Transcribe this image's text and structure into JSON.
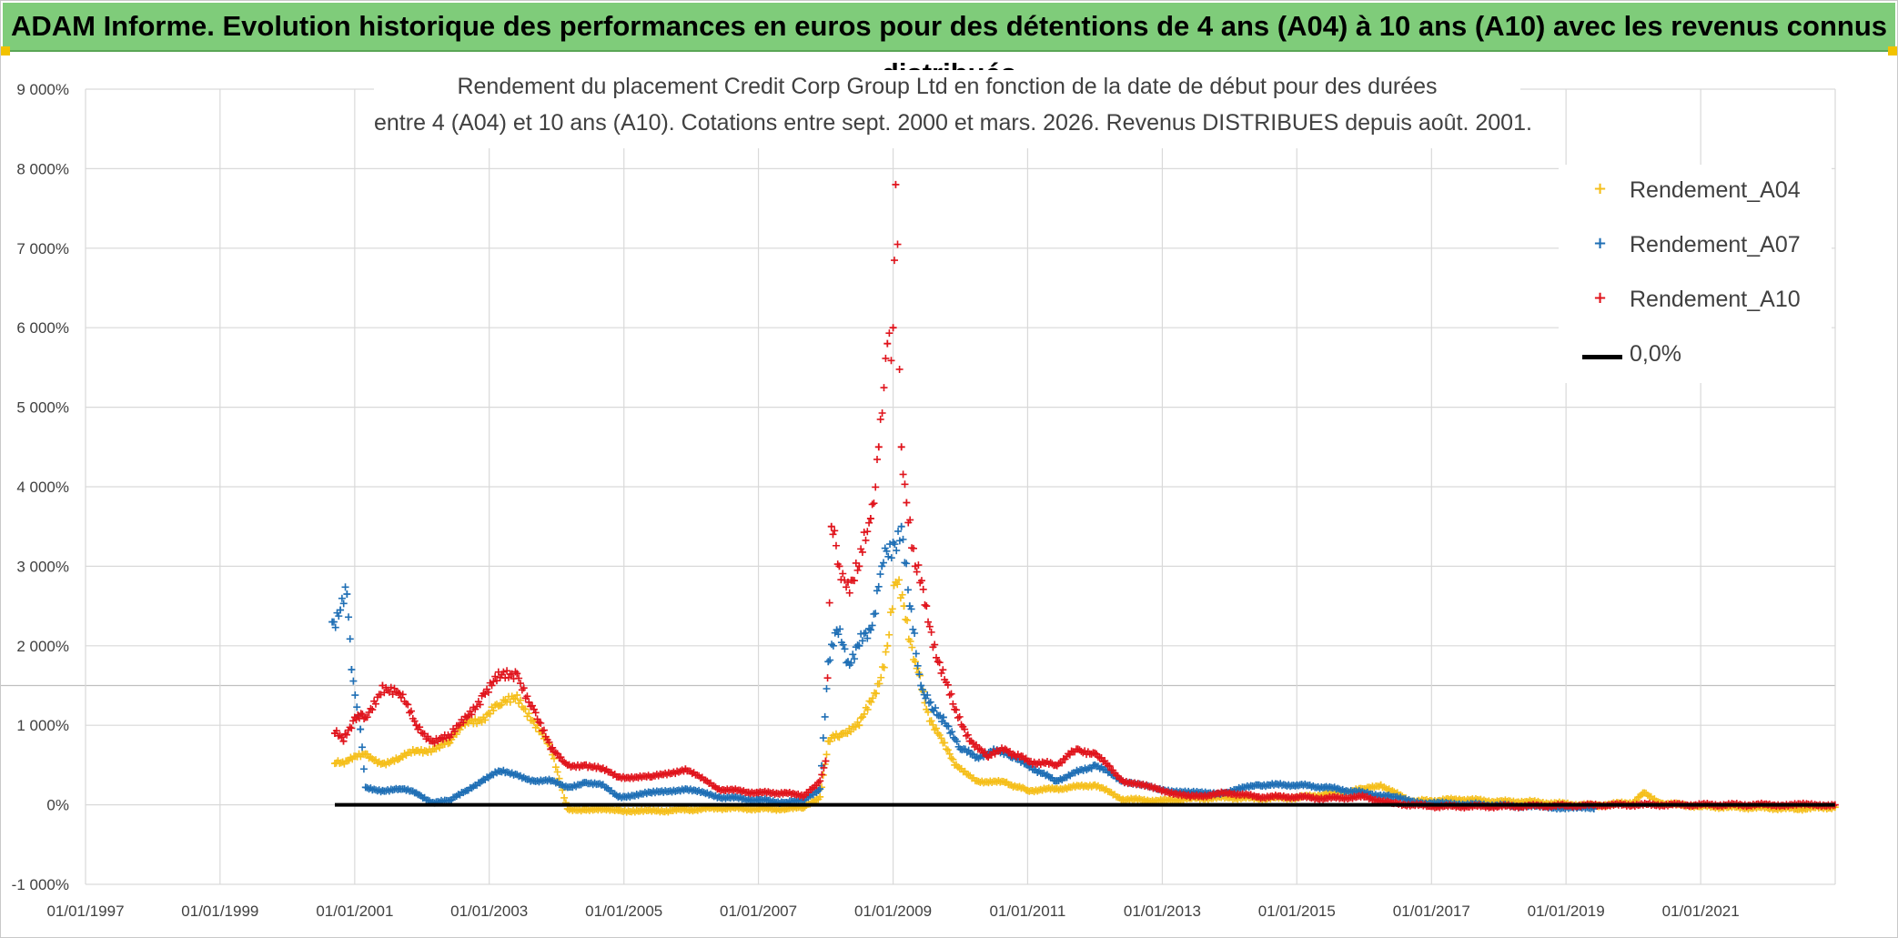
{
  "banner": {
    "title": "ADAM Informe. Evolution historique des performances en euros pour des détentions de 4 ans (A04) à 10 ans (A10) avec les revenus connus distribués"
  },
  "colors": {
    "banner_bg": "#7fcc7a",
    "A04": "#f5bf1b",
    "A07": "#1f6fb5",
    "A10": "#e0141c",
    "zero": "#000000"
  },
  "chart_data": {
    "type": "scatter",
    "title_line1": "Rendement du placement Credit Corp Group Ltd en fonction de la date de début pour des durées",
    "title_line2": "entre 4 (A04) et 10 ans (A10). Cotations entre sept. 2000 et mars. 2026. Revenus DISTRIBUES depuis août. 2001.",
    "x_ticks": [
      "01/01/1997",
      "01/01/1999",
      "01/01/2001",
      "01/01/2003",
      "01/01/2005",
      "01/01/2007",
      "01/01/2009",
      "01/01/2011",
      "01/01/2013",
      "01/01/2015",
      "01/01/2017",
      "01/01/2019",
      "01/01/2021"
    ],
    "y_ticks": [
      "9 000%",
      "8 000%",
      "7 000%",
      "6 000%",
      "5 000%",
      "4 000%",
      "3 000%",
      "2 000%",
      "1 000%",
      "0%",
      "-1 000%"
    ],
    "xlim": [
      "1997-01-01",
      "2023-01-01"
    ],
    "ylim": [
      -1000,
      9000
    ],
    "grid": true,
    "legend_position": "top-right",
    "series": [
      {
        "name": "Rendement_A04",
        "marker": "+",
        "points": [
          [
            "2000-09-15",
            520
          ],
          [
            "2000-12-01",
            560
          ],
          [
            "2001-03-01",
            640
          ],
          [
            "2001-06-01",
            520
          ],
          [
            "2001-09-01",
            580
          ],
          [
            "2001-12-01",
            680
          ],
          [
            "2002-03-01",
            700
          ],
          [
            "2002-06-01",
            780
          ],
          [
            "2002-09-01",
            1050
          ],
          [
            "2002-12-01",
            1100
          ],
          [
            "2003-03-01",
            1250
          ],
          [
            "2003-06-01",
            1380
          ],
          [
            "2003-09-01",
            1050
          ],
          [
            "2003-12-01",
            700
          ],
          [
            "2004-03-01",
            -50
          ],
          [
            "2004-06-01",
            -60
          ],
          [
            "2004-12-01",
            -70
          ],
          [
            "2005-06-01",
            -80
          ],
          [
            "2006-01-01",
            -60
          ],
          [
            "2006-06-01",
            -40
          ],
          [
            "2007-01-01",
            -50
          ],
          [
            "2007-06-01",
            -50
          ],
          [
            "2007-09-01",
            -40
          ],
          [
            "2007-12-01",
            100
          ],
          [
            "2008-01-15",
            800
          ],
          [
            "2008-04-01",
            900
          ],
          [
            "2008-07-01",
            1000
          ],
          [
            "2008-10-01",
            1400
          ],
          [
            "2008-12-01",
            2000
          ],
          [
            "2009-01-15",
            2800
          ],
          [
            "2009-03-01",
            2500
          ],
          [
            "2009-05-01",
            1800
          ],
          [
            "2009-07-01",
            1200
          ],
          [
            "2009-09-01",
            900
          ],
          [
            "2009-12-01",
            500
          ],
          [
            "2010-04-01",
            300
          ],
          [
            "2010-09-01",
            280
          ],
          [
            "2011-01-01",
            180
          ],
          [
            "2011-06-01",
            200
          ],
          [
            "2012-01-01",
            250
          ],
          [
            "2012-06-01",
            70
          ],
          [
            "2013-01-01",
            50
          ],
          [
            "2013-06-01",
            80
          ],
          [
            "2014-01-01",
            90
          ],
          [
            "2014-06-01",
            80
          ],
          [
            "2015-01-01",
            90
          ],
          [
            "2015-06-01",
            130
          ],
          [
            "2016-01-01",
            200
          ],
          [
            "2016-04-01",
            250
          ],
          [
            "2016-09-01",
            50
          ],
          [
            "2017-01-01",
            50
          ],
          [
            "2017-06-01",
            70
          ],
          [
            "2018-01-01",
            40
          ],
          [
            "2018-06-01",
            40
          ],
          [
            "2019-01-01",
            10
          ],
          [
            "2019-06-01",
            -10
          ],
          [
            "2020-01-01",
            30
          ],
          [
            "2020-03-01",
            150
          ],
          [
            "2020-06-01",
            20
          ],
          [
            "2021-01-01",
            -20
          ],
          [
            "2021-06-01",
            -30
          ],
          [
            "2022-01-01",
            -40
          ],
          [
            "2022-06-01",
            -50
          ],
          [
            "2022-12-31",
            -30
          ]
        ]
      },
      {
        "name": "Rendement_A07",
        "marker": "+",
        "points": [
          [
            "2000-09-01",
            2300
          ],
          [
            "2000-10-15",
            2450
          ],
          [
            "2000-11-20",
            2650
          ],
          [
            "2000-12-15",
            1700
          ],
          [
            "2001-02-01",
            950
          ],
          [
            "2001-03-01",
            220
          ],
          [
            "2001-06-01",
            180
          ],
          [
            "2001-09-01",
            200
          ],
          [
            "2001-12-01",
            150
          ],
          [
            "2002-03-01",
            30
          ],
          [
            "2002-06-01",
            50
          ],
          [
            "2002-09-01",
            180
          ],
          [
            "2002-12-01",
            320
          ],
          [
            "2003-03-01",
            420
          ],
          [
            "2003-06-01",
            380
          ],
          [
            "2003-09-01",
            300
          ],
          [
            "2003-12-01",
            300
          ],
          [
            "2004-03-01",
            220
          ],
          [
            "2004-06-01",
            280
          ],
          [
            "2004-09-01",
            250
          ],
          [
            "2004-12-01",
            100
          ],
          [
            "2005-06-01",
            150
          ],
          [
            "2005-12-01",
            200
          ],
          [
            "2006-06-01",
            100
          ],
          [
            "2007-01-01",
            60
          ],
          [
            "2007-06-01",
            30
          ],
          [
            "2007-09-01",
            50
          ],
          [
            "2007-12-01",
            200
          ],
          [
            "2008-01-15",
            1800
          ],
          [
            "2008-03-01",
            2200
          ],
          [
            "2008-05-01",
            1800
          ],
          [
            "2008-07-01",
            2000
          ],
          [
            "2008-09-01",
            2200
          ],
          [
            "2008-11-01",
            3000
          ],
          [
            "2009-01-01",
            3300
          ],
          [
            "2009-02-15",
            3500
          ],
          [
            "2009-04-01",
            2500
          ],
          [
            "2009-06-01",
            1500
          ],
          [
            "2009-08-01",
            1200
          ],
          [
            "2009-10-01",
            1100
          ],
          [
            "2010-01-01",
            700
          ],
          [
            "2010-04-01",
            600
          ],
          [
            "2010-07-01",
            700
          ],
          [
            "2010-10-01",
            600
          ],
          [
            "2011-01-01",
            500
          ],
          [
            "2011-06-01",
            300
          ],
          [
            "2012-01-01",
            500
          ],
          [
            "2012-06-01",
            300
          ],
          [
            "2012-12-01",
            200
          ],
          [
            "2013-06-01",
            150
          ],
          [
            "2013-12-01",
            150
          ],
          [
            "2014-06-01",
            250
          ],
          [
            "2015-01-01",
            250
          ],
          [
            "2015-06-01",
            220
          ],
          [
            "2016-01-01",
            150
          ],
          [
            "2016-06-01",
            100
          ],
          [
            "2016-12-01",
            20
          ],
          [
            "2017-06-01",
            10
          ],
          [
            "2018-06-01",
            -20
          ],
          [
            "2019-03-01",
            -40
          ],
          [
            "2019-06-01",
            -50
          ]
        ]
      },
      {
        "name": "Rendement_A10",
        "marker": "+",
        "points": [
          [
            "2000-09-15",
            900
          ],
          [
            "2000-11-01",
            800
          ],
          [
            "2001-01-01",
            1100
          ],
          [
            "2001-03-01",
            1100
          ],
          [
            "2001-06-01",
            1500
          ],
          [
            "2001-09-01",
            1400
          ],
          [
            "2001-12-01",
            1000
          ],
          [
            "2002-03-01",
            800
          ],
          [
            "2002-06-01",
            850
          ],
          [
            "2002-09-01",
            1100
          ],
          [
            "2002-12-01",
            1400
          ],
          [
            "2003-03-01",
            1600
          ],
          [
            "2003-06-01",
            1650
          ],
          [
            "2003-09-01",
            1200
          ],
          [
            "2003-12-01",
            700
          ],
          [
            "2004-03-01",
            500
          ],
          [
            "2004-06-01",
            500
          ],
          [
            "2004-09-01",
            450
          ],
          [
            "2004-12-01",
            350
          ],
          [
            "2005-06-01",
            350
          ],
          [
            "2005-12-01",
            450
          ],
          [
            "2006-06-01",
            200
          ],
          [
            "2007-01-01",
            150
          ],
          [
            "2007-06-01",
            150
          ],
          [
            "2007-09-01",
            100
          ],
          [
            "2007-12-01",
            300
          ],
          [
            "2008-01-01",
            550
          ],
          [
            "2008-02-01",
            3500
          ],
          [
            "2008-03-15",
            3000
          ],
          [
            "2008-05-01",
            2800
          ],
          [
            "2008-07-01",
            3000
          ],
          [
            "2008-09-01",
            3600
          ],
          [
            "2008-10-15",
            4500
          ],
          [
            "2008-12-01",
            5800
          ],
          [
            "2009-01-01",
            6000
          ],
          [
            "2009-01-15",
            7800
          ],
          [
            "2009-02-15",
            4500
          ],
          [
            "2009-03-15",
            3800
          ],
          [
            "2009-05-01",
            3000
          ],
          [
            "2009-07-01",
            2500
          ],
          [
            "2009-09-01",
            1800
          ],
          [
            "2009-12-01",
            1200
          ],
          [
            "2010-03-01",
            800
          ],
          [
            "2010-06-01",
            600
          ],
          [
            "2010-09-01",
            700
          ],
          [
            "2011-01-01",
            550
          ],
          [
            "2011-06-01",
            500
          ],
          [
            "2011-10-01",
            700
          ],
          [
            "2012-01-01",
            650
          ],
          [
            "2012-06-01",
            300
          ],
          [
            "2012-12-01",
            200
          ],
          [
            "2013-06-01",
            100
          ],
          [
            "2014-01-01",
            150
          ],
          [
            "2014-06-01",
            100
          ],
          [
            "2015-01-01",
            100
          ],
          [
            "2015-06-01",
            80
          ],
          [
            "2016-01-01",
            100
          ],
          [
            "2016-06-01",
            20
          ],
          [
            "2017-01-01",
            -20
          ],
          [
            "2018-01-01",
            -20
          ],
          [
            "2019-01-01",
            -10
          ],
          [
            "2020-01-01",
            0
          ],
          [
            "2021-01-01",
            0
          ],
          [
            "2022-01-01",
            0
          ],
          [
            "2022-12-31",
            0
          ]
        ]
      },
      {
        "name": "0,0%",
        "marker": "line",
        "points": [
          [
            "2000-09-15",
            0
          ],
          [
            "2022-12-31",
            0
          ]
        ]
      }
    ]
  }
}
